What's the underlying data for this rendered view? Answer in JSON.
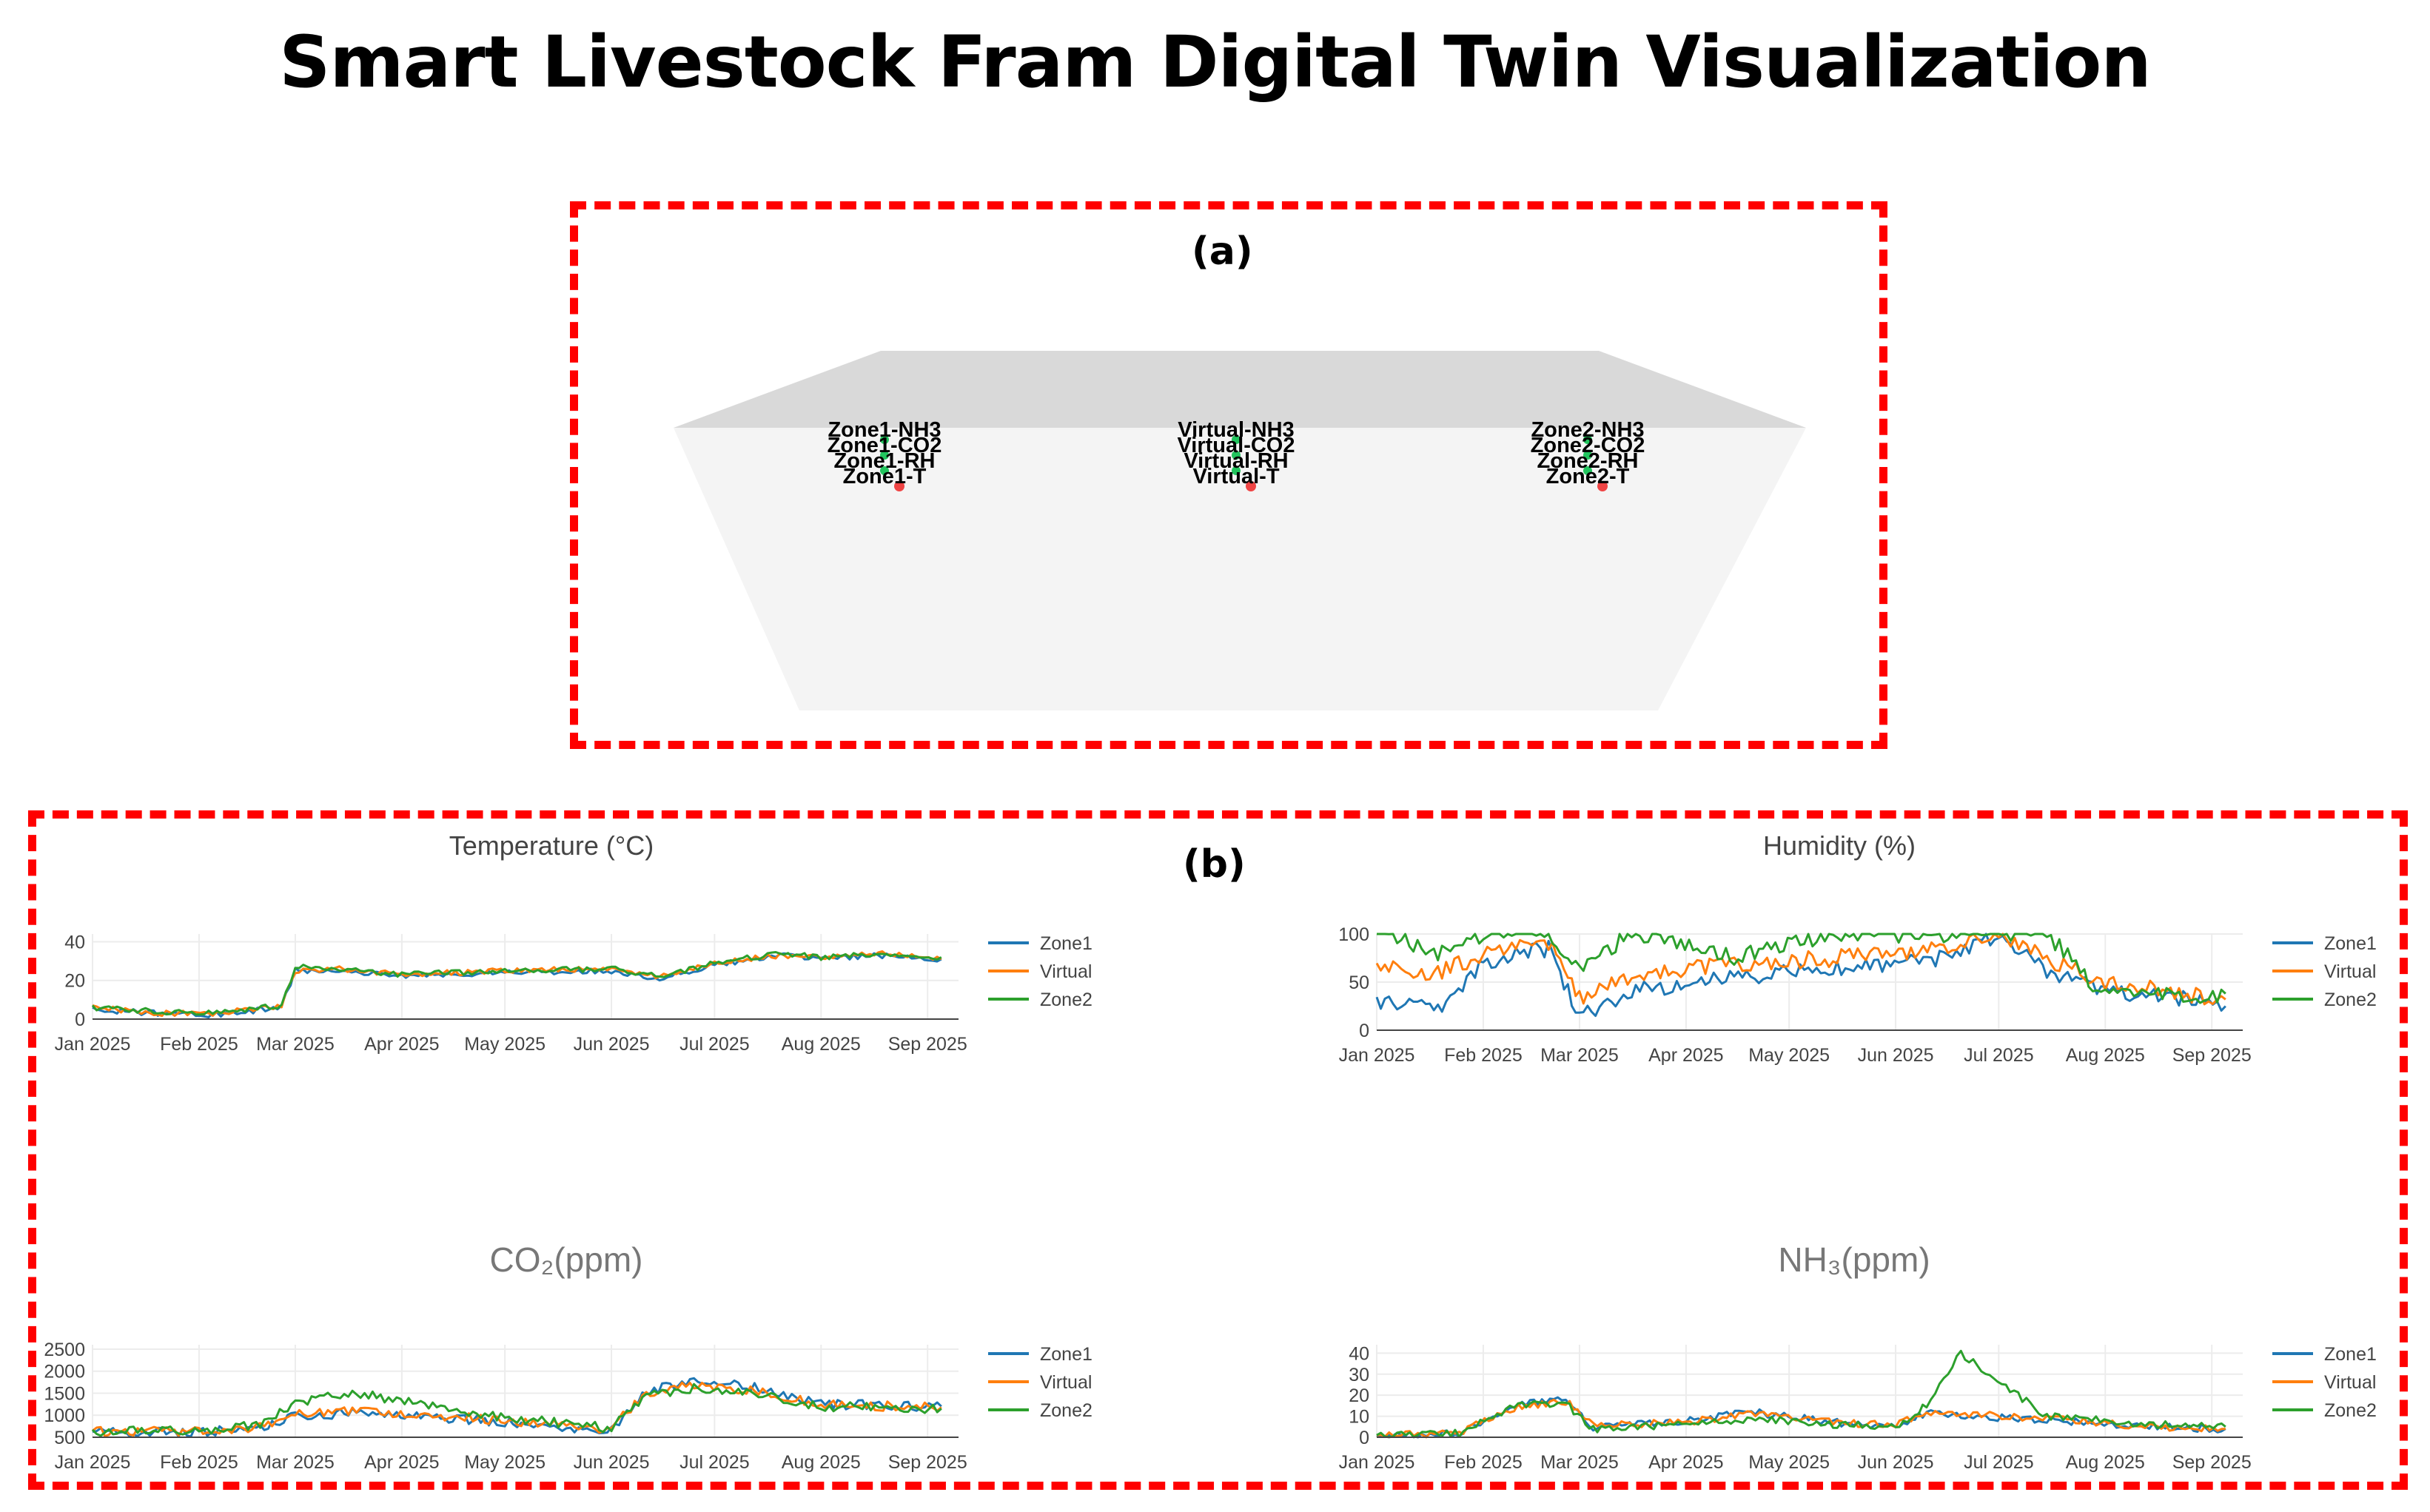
{
  "title": "Smart Livestock Fram Digital Twin Visualization",
  "panel_a": {
    "label": "(a)",
    "sensor_groups": [
      {
        "name": "zone1",
        "labels": [
          "Zone1-NH3",
          "Zone1-CO2",
          "Zone1-RH",
          "Zone1-T"
        ]
      },
      {
        "name": "virtual",
        "labels": [
          "Virtual-NH3",
          "Virtual-CO2",
          "Virtual-RH",
          "Virtual-T"
        ]
      },
      {
        "name": "zone2",
        "labels": [
          "Zone2-NH3",
          "Zone2-CO2",
          "Zone2-RH",
          "Zone2-T"
        ]
      }
    ],
    "colors": {
      "marker_green": "#22c55e",
      "marker_red": "#ef4444",
      "roof": "#d9d9d9",
      "floor": "#f4f4f4"
    }
  },
  "panel_b": {
    "label": "(b)"
  },
  "colors": {
    "zone1": "#1f77b4",
    "virtual": "#ff7f0e",
    "zone2": "#2ca02c",
    "highlight_box": "#ff0000"
  },
  "chart_data": [
    {
      "type": "line",
      "title": "Temperature (°C)",
      "x_ticks": [
        "Jan 2025",
        "Feb 2025",
        "Mar 2025",
        "Apr 2025",
        "May 2025",
        "Jun 2025",
        "Jul 2025",
        "Aug 2025",
        "Sep 2025"
      ],
      "xlim": [
        "2025-01-01",
        "2025-09-10"
      ],
      "y_ticks": [
        "0",
        "20",
        "40"
      ],
      "ylim": [
        0,
        44
      ],
      "legend": [
        "Zone1",
        "Virtual",
        "Zone2"
      ],
      "legend_position": "right",
      "grid": true,
      "series": [
        {
          "name": "Zone1",
          "x": [
            "2025-01-01",
            "2025-01-20",
            "2025-02-05",
            "2025-02-25",
            "2025-03-01",
            "2025-03-15",
            "2025-04-01",
            "2025-05-01",
            "2025-06-01",
            "2025-06-15",
            "2025-07-01",
            "2025-07-20",
            "2025-08-01",
            "2025-08-20",
            "2025-09-05"
          ],
          "y": [
            5,
            3,
            2,
            6,
            25,
            25,
            22,
            24,
            25,
            21,
            28,
            33,
            31,
            33,
            31
          ]
        },
        {
          "name": "Virtual",
          "x": [
            "2025-01-01",
            "2025-01-20",
            "2025-02-05",
            "2025-02-25",
            "2025-03-01",
            "2025-03-15",
            "2025-04-01",
            "2025-05-01",
            "2025-06-01",
            "2025-06-15",
            "2025-07-01",
            "2025-07-20",
            "2025-08-01",
            "2025-08-20",
            "2025-09-05"
          ],
          "y": [
            6,
            3,
            3,
            7,
            25,
            26,
            23,
            25,
            26,
            22,
            29,
            33,
            32,
            34,
            31
          ]
        },
        {
          "name": "Zone2",
          "x": [
            "2025-01-01",
            "2025-01-20",
            "2025-02-05",
            "2025-02-25",
            "2025-03-01",
            "2025-03-15",
            "2025-04-01",
            "2025-05-01",
            "2025-06-01",
            "2025-06-15",
            "2025-07-01",
            "2025-07-20",
            "2025-08-01",
            "2025-08-20",
            "2025-09-05"
          ],
          "y": [
            6,
            4,
            3,
            7,
            27,
            26,
            23,
            25,
            26,
            22,
            29,
            34,
            32,
            34,
            32
          ]
        }
      ]
    },
    {
      "type": "line",
      "title": "Humidity (%)",
      "x_ticks": [
        "Jan 2025",
        "Feb 2025",
        "Mar 2025",
        "Apr 2025",
        "May 2025",
        "Jun 2025",
        "Jul 2025",
        "Aug 2025",
        "Sep 2025"
      ],
      "xlim": [
        "2025-01-01",
        "2025-09-10"
      ],
      "y_ticks": [
        "0",
        "50",
        "100"
      ],
      "ylim": [
        0,
        100
      ],
      "legend": [
        "Zone1",
        "Virtual",
        "Zone2"
      ],
      "legend_position": "right",
      "grid": true,
      "series": [
        {
          "name": "Zone1",
          "x": [
            "2025-01-01",
            "2025-01-20",
            "2025-02-01",
            "2025-02-20",
            "2025-03-01",
            "2025-03-15",
            "2025-04-15",
            "2025-05-15",
            "2025-06-15",
            "2025-07-01",
            "2025-07-15",
            "2025-08-01",
            "2025-08-20",
            "2025-09-05"
          ],
          "y": [
            30,
            25,
            70,
            85,
            15,
            40,
            55,
            65,
            75,
            100,
            60,
            40,
            35,
            25
          ]
        },
        {
          "name": "Virtual",
          "x": [
            "2025-01-01",
            "2025-01-20",
            "2025-02-01",
            "2025-02-20",
            "2025-03-01",
            "2025-03-15",
            "2025-04-15",
            "2025-05-15",
            "2025-06-15",
            "2025-07-01",
            "2025-07-15",
            "2025-08-01",
            "2025-08-20",
            "2025-09-05"
          ],
          "y": [
            65,
            60,
            80,
            90,
            35,
            55,
            70,
            75,
            85,
            100,
            75,
            50,
            40,
            32
          ]
        },
        {
          "name": "Zone2",
          "x": [
            "2025-01-01",
            "2025-01-20",
            "2025-02-01",
            "2025-02-20",
            "2025-03-01",
            "2025-03-15",
            "2025-04-15",
            "2025-05-15",
            "2025-06-15",
            "2025-07-01",
            "2025-07-15",
            "2025-08-01",
            "2025-08-20",
            "2025-09-05"
          ],
          "y": [
            100,
            80,
            100,
            100,
            60,
            100,
            75,
            100,
            100,
            100,
            100,
            35,
            35,
            38
          ]
        }
      ]
    },
    {
      "type": "line",
      "title": "CO₂(ppm)",
      "x_ticks": [
        "Jan 2025",
        "Feb 2025",
        "Mar 2025",
        "Apr 2025",
        "May 2025",
        "Jun 2025",
        "Jul 2025",
        "Aug 2025",
        "Sep 2025"
      ],
      "xlim": [
        "2025-01-01",
        "2025-09-10"
      ],
      "y_ticks": [
        "500",
        "1000",
        "1500",
        "2000",
        "2500"
      ],
      "ylim": [
        500,
        2600
      ],
      "legend": [
        "Zone1",
        "Virtual",
        "Zone2"
      ],
      "legend_position": "right",
      "grid": true,
      "series": [
        {
          "name": "Zone1",
          "x": [
            "2025-01-01",
            "2025-02-01",
            "2025-02-20",
            "2025-03-01",
            "2025-03-20",
            "2025-04-10",
            "2025-05-01",
            "2025-06-01",
            "2025-06-10",
            "2025-06-25",
            "2025-07-15",
            "2025-08-01",
            "2025-09-05"
          ],
          "y": [
            600,
            620,
            700,
            1000,
            1050,
            950,
            850,
            650,
            1500,
            1800,
            1600,
            1250,
            1200
          ]
        },
        {
          "name": "Virtual",
          "x": [
            "2025-01-01",
            "2025-02-01",
            "2025-02-20",
            "2025-03-01",
            "2025-03-20",
            "2025-04-10",
            "2025-05-01",
            "2025-06-01",
            "2025-06-10",
            "2025-06-25",
            "2025-07-15",
            "2025-08-01",
            "2025-09-05"
          ],
          "y": [
            620,
            640,
            750,
            1050,
            1100,
            1000,
            880,
            680,
            1450,
            1700,
            1550,
            1230,
            1180
          ]
        },
        {
          "name": "Zone2",
          "x": [
            "2025-01-01",
            "2025-02-01",
            "2025-02-20",
            "2025-03-01",
            "2025-03-20",
            "2025-04-10",
            "2025-05-01",
            "2025-06-01",
            "2025-06-10",
            "2025-06-25",
            "2025-07-15",
            "2025-08-01",
            "2025-09-05"
          ],
          "y": [
            640,
            650,
            800,
            1300,
            1500,
            1200,
            950,
            700,
            1400,
            1600,
            1450,
            1200,
            1150
          ]
        }
      ]
    },
    {
      "type": "line",
      "title": "NH₃(ppm)",
      "x_ticks": [
        "Jan 2025",
        "Feb 2025",
        "Mar 2025",
        "Apr 2025",
        "May 2025",
        "Jun 2025",
        "Jul 2025",
        "Aug 2025",
        "Sep 2025"
      ],
      "xlim": [
        "2025-01-01",
        "2025-09-10"
      ],
      "y_ticks": [
        "0",
        "10",
        "20",
        "30",
        "40"
      ],
      "ylim": [
        0,
        44
      ],
      "legend": [
        "Zone1",
        "Virtual",
        "Zone2"
      ],
      "legend_position": "right",
      "grid": true,
      "series": [
        {
          "name": "Zone1",
          "x": [
            "2025-01-01",
            "2025-01-25",
            "2025-02-10",
            "2025-02-25",
            "2025-03-05",
            "2025-04-01",
            "2025-04-20",
            "2025-05-15",
            "2025-06-01",
            "2025-06-10",
            "2025-06-20",
            "2025-07-15",
            "2025-08-15",
            "2025-09-05"
          ],
          "y": [
            1,
            2,
            15,
            18,
            5,
            8,
            12,
            7,
            5,
            12,
            10,
            8,
            5,
            4
          ]
        },
        {
          "name": "Virtual",
          "x": [
            "2025-01-01",
            "2025-01-25",
            "2025-02-10",
            "2025-02-25",
            "2025-03-05",
            "2025-04-01",
            "2025-04-20",
            "2025-05-15",
            "2025-06-01",
            "2025-06-10",
            "2025-06-20",
            "2025-07-15",
            "2025-08-15",
            "2025-09-05"
          ],
          "y": [
            1,
            2,
            14,
            17,
            6,
            7,
            11,
            7,
            6,
            12,
            11,
            9,
            5,
            4
          ]
        },
        {
          "name": "Zone2",
          "x": [
            "2025-01-01",
            "2025-01-25",
            "2025-02-10",
            "2025-02-25",
            "2025-03-05",
            "2025-04-01",
            "2025-04-20",
            "2025-05-15",
            "2025-06-01",
            "2025-06-10",
            "2025-06-20",
            "2025-07-15",
            "2025-08-15",
            "2025-09-05"
          ],
          "y": [
            1,
            2,
            15,
            16,
            4,
            6,
            9,
            6,
            5,
            15,
            40,
            10,
            6,
            5
          ]
        }
      ]
    }
  ]
}
